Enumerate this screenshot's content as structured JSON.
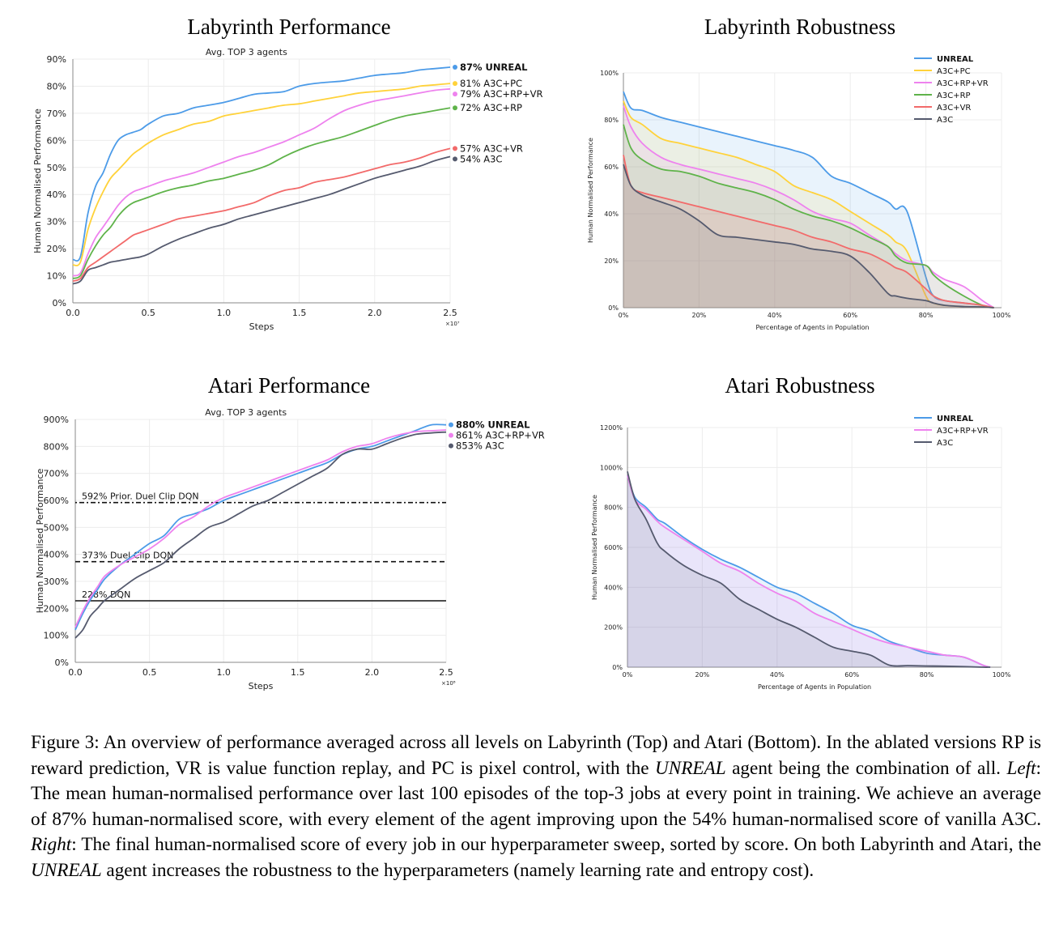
{
  "chart_data": [
    {
      "id": "lab-perf",
      "type": "line",
      "title": "Labyrinth Performance",
      "subtitle": "Avg. TOP 3 agents",
      "xlabel": "Steps",
      "ylabel": "Human Normalised Performance",
      "x_multiplier_label": "×10⁷",
      "xlim": [
        0,
        2.5
      ],
      "ylim": [
        0,
        90
      ],
      "xticks": [
        "0.0",
        "0.5",
        "1.0",
        "1.5",
        "2.0",
        "2.5"
      ],
      "yticks": [
        "0%",
        "10%",
        "20%",
        "30%",
        "40%",
        "50%",
        "60%",
        "70%",
        "80%",
        "90%"
      ],
      "x": [
        0,
        0.05,
        0.1,
        0.15,
        0.2,
        0.25,
        0.3,
        0.35,
        0.4,
        0.45,
        0.5,
        0.6,
        0.7,
        0.8,
        0.9,
        1.0,
        1.1,
        1.2,
        1.3,
        1.4,
        1.5,
        1.6,
        1.7,
        1.8,
        1.9,
        2.0,
        2.1,
        2.2,
        2.3,
        2.4,
        2.5
      ],
      "series": [
        {
          "name": "UNREAL",
          "end_label": "87% UNREAL",
          "bold": true,
          "color": "#4c9be8",
          "values": [
            16,
            17,
            33,
            43,
            48,
            55,
            60,
            62,
            63,
            64,
            66,
            69,
            70,
            72,
            73,
            74,
            75.5,
            77,
            77.5,
            78,
            80,
            81,
            81.5,
            82,
            83,
            84,
            84.5,
            85,
            86,
            86.5,
            87
          ]
        },
        {
          "name": "A3C+PC",
          "end_label": "81% A3C+PC",
          "color": "#ffd23a",
          "values": [
            14,
            15,
            27,
            35,
            41,
            46,
            49,
            52,
            55,
            57,
            59,
            62,
            64,
            66,
            67,
            69,
            70,
            71,
            72,
            73,
            73.5,
            74.5,
            75.5,
            76.5,
            77.5,
            78,
            78.5,
            79,
            80,
            80.5,
            81
          ]
        },
        {
          "name": "A3C+RP+VR",
          "end_label": "79% A3C+RP+VR",
          "color": "#ee82ee",
          "values": [
            10,
            11,
            18,
            24,
            28,
            32,
            36,
            39,
            41,
            42,
            43,
            45,
            46.5,
            48,
            50,
            52,
            54,
            55.5,
            57.5,
            59.5,
            62,
            64.5,
            68,
            71,
            73,
            74.5,
            75.5,
            76.5,
            77.5,
            78.5,
            79
          ]
        },
        {
          "name": "A3C+RP",
          "end_label": "72% A3C+RP",
          "color": "#5fb34a",
          "values": [
            9,
            10,
            16,
            21,
            25,
            28,
            32,
            35,
            37,
            38,
            39,
            41,
            42.5,
            43.5,
            45,
            46,
            47.5,
            49,
            51,
            54,
            56.5,
            58.5,
            60,
            61.5,
            63.5,
            65.5,
            67.5,
            69,
            70,
            71,
            72
          ]
        },
        {
          "name": "A3C+VR",
          "end_label": "57% A3C+VR",
          "color": "#f26a6a",
          "values": [
            8,
            9,
            13,
            15,
            17,
            19,
            21,
            23,
            25,
            26,
            27,
            29,
            31,
            32,
            33,
            34,
            35.5,
            37,
            39.5,
            41.5,
            42.5,
            44.5,
            45.5,
            46.5,
            48,
            49.5,
            51,
            52,
            53.5,
            55.5,
            57
          ]
        },
        {
          "name": "A3C",
          "end_label": "54% A3C",
          "color": "#555a6e",
          "values": [
            7,
            8,
            12,
            13,
            14,
            15,
            15.5,
            16,
            16.5,
            17,
            18,
            21,
            23.5,
            25.5,
            27.5,
            29,
            31,
            32.5,
            34,
            35.5,
            37,
            38.5,
            40,
            42,
            44,
            46,
            47.5,
            49,
            50.5,
            52.5,
            54
          ]
        }
      ]
    },
    {
      "id": "lab-rob",
      "type": "area",
      "title": "Labyrinth Robustness",
      "xlabel": "Percentage of Agents in Population",
      "ylabel": "Human Normalised Performance",
      "xlim": [
        0,
        100
      ],
      "ylim": [
        0,
        100
      ],
      "xticks": [
        "0%",
        "20%",
        "40%",
        "60%",
        "80%",
        "100%"
      ],
      "yticks": [
        "0%",
        "20%",
        "40%",
        "60%",
        "80%",
        "100%"
      ],
      "legend_position": "top-right",
      "x": [
        0,
        2,
        5,
        10,
        15,
        20,
        25,
        30,
        35,
        40,
        45,
        50,
        55,
        60,
        65,
        70,
        72,
        75,
        80,
        82,
        85,
        90,
        95,
        98
      ],
      "series": [
        {
          "name": "UNREAL",
          "color": "#4c9be8",
          "values": [
            92,
            85,
            84,
            81,
            79,
            77,
            75,
            73,
            71,
            69,
            67,
            64,
            56,
            53,
            49,
            45,
            42,
            41,
            13,
            5,
            3,
            2,
            1,
            0
          ]
        },
        {
          "name": "A3C+PC",
          "color": "#ffd23a",
          "values": [
            88,
            81,
            78,
            72,
            70,
            68,
            66,
            64,
            61,
            58,
            52,
            49,
            46,
            41,
            36,
            31,
            28,
            24,
            5,
            2,
            1,
            0.5,
            0.3,
            0
          ]
        },
        {
          "name": "A3C+RP+VR",
          "color": "#ee82ee",
          "values": [
            86,
            77,
            70,
            64,
            61,
            59,
            57,
            55,
            53,
            50,
            46,
            41,
            38,
            36,
            31,
            26,
            23,
            20,
            18,
            15,
            12,
            9,
            3,
            0
          ]
        },
        {
          "name": "A3C+RP",
          "color": "#5fb34a",
          "values": [
            78,
            68,
            63,
            59,
            58,
            56,
            53,
            51,
            49,
            46,
            42,
            39,
            37,
            34,
            30,
            26,
            22,
            19,
            18,
            14,
            10,
            5,
            1,
            0
          ]
        },
        {
          "name": "A3C+VR",
          "color": "#f26a6a",
          "values": [
            65,
            52,
            49,
            47,
            45,
            43,
            41,
            39,
            37,
            35,
            33,
            30,
            28,
            25,
            23,
            19,
            17,
            15,
            8,
            5,
            3,
            2,
            1,
            0
          ]
        },
        {
          "name": "A3C",
          "color": "#555a6e",
          "values": [
            61,
            52,
            48,
            45,
            42,
            37,
            31,
            30,
            29,
            28,
            27,
            25,
            24,
            22,
            15,
            6,
            5,
            4,
            3,
            2,
            1,
            0.5,
            0.3,
            0
          ]
        }
      ]
    },
    {
      "id": "atari-perf",
      "type": "line",
      "title": "Atari Performance",
      "subtitle": "Avg. TOP 3 agents",
      "xlabel": "Steps",
      "ylabel": "Human Normalised Performance",
      "x_multiplier_label": "×10⁸",
      "xlim": [
        0,
        2.5
      ],
      "ylim": [
        0,
        900
      ],
      "xticks": [
        "0.0",
        "0.5",
        "1.0",
        "1.5",
        "2.0",
        "2.5"
      ],
      "yticks": [
        "0%",
        "100%",
        "200%",
        "300%",
        "400%",
        "500%",
        "600%",
        "700%",
        "800%",
        "900%"
      ],
      "x": [
        0,
        0.05,
        0.1,
        0.15,
        0.2,
        0.3,
        0.4,
        0.5,
        0.6,
        0.7,
        0.8,
        0.9,
        1.0,
        1.1,
        1.2,
        1.3,
        1.4,
        1.5,
        1.6,
        1.7,
        1.8,
        1.9,
        2.0,
        2.1,
        2.2,
        2.3,
        2.4,
        2.5
      ],
      "series": [
        {
          "name": "UNREAL",
          "end_label": "880% UNREAL",
          "bold": true,
          "color": "#4c9be8",
          "values": [
            120,
            180,
            230,
            270,
            310,
            360,
            400,
            440,
            470,
            530,
            550,
            570,
            600,
            620,
            640,
            660,
            680,
            700,
            720,
            740,
            770,
            790,
            800,
            820,
            840,
            860,
            880,
            880
          ]
        },
        {
          "name": "A3C+RP+VR",
          "end_label": "861% A3C+RP+VR",
          "color": "#ee82ee",
          "values": [
            130,
            190,
            240,
            280,
            320,
            360,
            390,
            420,
            460,
            510,
            540,
            580,
            610,
            630,
            650,
            670,
            690,
            710,
            730,
            750,
            780,
            800,
            810,
            830,
            845,
            855,
            858,
            861
          ]
        },
        {
          "name": "A3C",
          "end_label": "853% A3C",
          "color": "#555a6e",
          "values": [
            90,
            120,
            170,
            200,
            230,
            270,
            310,
            340,
            370,
            420,
            460,
            500,
            520,
            550,
            580,
            600,
            630,
            660,
            690,
            720,
            770,
            790,
            790,
            810,
            830,
            845,
            850,
            853
          ]
        }
      ],
      "reference_lines": [
        {
          "value": 592,
          "label": "592% Prior. Duel Clip DQN",
          "style": "dotdash"
        },
        {
          "value": 373,
          "label": "373% Duel Clip DQN",
          "style": "dashed"
        },
        {
          "value": 228,
          "label": "228% DQN",
          "style": "solid"
        }
      ]
    },
    {
      "id": "atari-rob",
      "type": "area",
      "title": "Atari Robustness",
      "xlabel": "Percentage of Agents in Population",
      "ylabel": "Human Normalised Performance",
      "xlim": [
        0,
        100
      ],
      "ylim": [
        0,
        1200
      ],
      "xticks": [
        "0%",
        "20%",
        "40%",
        "60%",
        "80%",
        "100%"
      ],
      "yticks": [
        "0%",
        "200%",
        "400%",
        "600%",
        "800%",
        "1000%",
        "1200%"
      ],
      "legend_position": "top-right",
      "x": [
        0,
        2,
        5,
        8,
        10,
        15,
        20,
        25,
        30,
        35,
        40,
        45,
        50,
        55,
        60,
        65,
        70,
        75,
        80,
        85,
        90,
        95,
        97
      ],
      "series": [
        {
          "name": "UNREAL",
          "color": "#4c9be8",
          "values": [
            960,
            850,
            800,
            740,
            720,
            650,
            590,
            540,
            500,
            450,
            400,
            370,
            320,
            270,
            210,
            180,
            130,
            100,
            70,
            60,
            50,
            10,
            0
          ]
        },
        {
          "name": "A3C+RP+VR",
          "color": "#ee82ee",
          "values": [
            960,
            840,
            790,
            730,
            700,
            640,
            580,
            520,
            480,
            420,
            370,
            330,
            270,
            230,
            190,
            150,
            120,
            100,
            80,
            60,
            50,
            10,
            0
          ]
        },
        {
          "name": "A3C",
          "color": "#555a6e",
          "values": [
            980,
            840,
            740,
            620,
            580,
            510,
            460,
            420,
            340,
            290,
            240,
            200,
            150,
            100,
            80,
            60,
            10,
            8,
            6,
            5,
            3,
            0,
            0
          ]
        }
      ]
    }
  ],
  "caption": {
    "p1": "Figure 3:  An overview of performance averaged across all levels on Labyrinth (Top) and Atari (Bottom). In the ablated versions RP is reward prediction, VR is value function replay, and PC is pixel control, with the ",
    "unreal1": "UNREAL",
    "p2": " agent being the combination of all. ",
    "left": "Left",
    "p3": ": The mean human-normalised performance over last 100 episodes of the top-3 jobs at every point in training. We achieve an average of 87% human-normalised score, with every element of the agent improving upon the 54% human-normalised score of vanilla A3C. ",
    "right": "Right",
    "p4": ": The final human-normalised score of every job in our hyperparameter sweep, sorted by score. On both Labyrinth and Atari, the ",
    "unreal2": "UNREAL",
    "p5": " agent increases the robustness to the hyperparameters (namely learning rate and entropy cost)."
  }
}
